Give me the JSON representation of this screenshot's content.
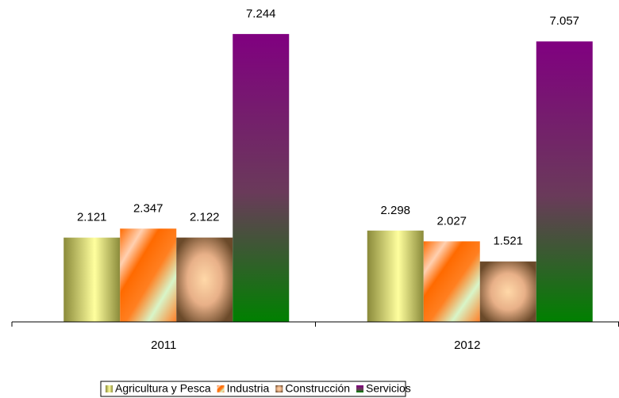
{
  "chart_data": {
    "type": "bar",
    "categories": [
      "2011",
      "2012"
    ],
    "series": [
      {
        "name": "Agricultura y Pesca",
        "color": "#e6e67a",
        "values": [
          2.121,
          2.298
        ]
      },
      {
        "name": "Industria",
        "color": "#ff7f27",
        "values": [
          2.347,
          2.027
        ]
      },
      {
        "name": "Construcción",
        "color": "#a0785a",
        "values": [
          2.122,
          1.521
        ]
      },
      {
        "name": "Servicios",
        "color": "#800080",
        "values": [
          7.244,
          7.057
        ]
      }
    ],
    "ylim": [
      0,
      8
    ],
    "legend": "bottom"
  }
}
